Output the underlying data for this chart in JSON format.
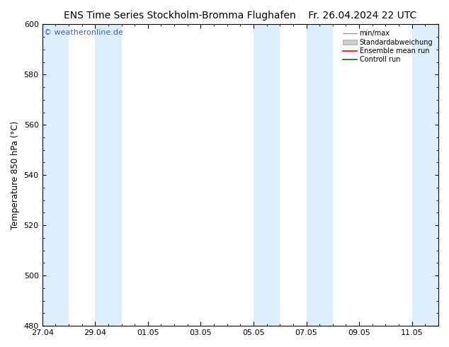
{
  "title": "ENS Time Series Stockholm-Bromma Flughafen",
  "title_right": "Fr. 26.04.2024 22 UTC",
  "ylabel": "Temperature 850 hPa (°C)",
  "watermark": "© weatheronline.de",
  "ylim": [
    480,
    600
  ],
  "yticks": [
    480,
    500,
    520,
    540,
    560,
    580,
    600
  ],
  "x_tick_labels": [
    "27.04",
    "29.04",
    "01.05",
    "03.05",
    "05.05",
    "07.05",
    "09.05",
    "11.05"
  ],
  "x_tick_positions": [
    0,
    2,
    4,
    6,
    8,
    10,
    12,
    14
  ],
  "xlim": [
    0,
    15
  ],
  "shaded_bands": [
    {
      "x_start": 0,
      "x_end": 1,
      "color": "#ddeeff"
    },
    {
      "x_start": 2,
      "x_end": 3,
      "color": "#ddeeff"
    },
    {
      "x_start": 8,
      "x_end": 9,
      "color": "#ddeeff"
    },
    {
      "x_start": 10,
      "x_end": 11,
      "color": "#ddeeff"
    },
    {
      "x_start": 14,
      "x_end": 15,
      "color": "#ddeeff"
    }
  ],
  "legend_items": [
    {
      "label": "min/max",
      "color": "#999999"
    },
    {
      "label": "Standardabweichung",
      "color": "#cccccc"
    },
    {
      "label": "Ensemble mean run",
      "color": "#ff0000"
    },
    {
      "label": "Controll run",
      "color": "#007700"
    }
  ],
  "background_color": "#ffffff",
  "title_fontsize": 10,
  "axis_label_fontsize": 8.5,
  "tick_fontsize": 8
}
